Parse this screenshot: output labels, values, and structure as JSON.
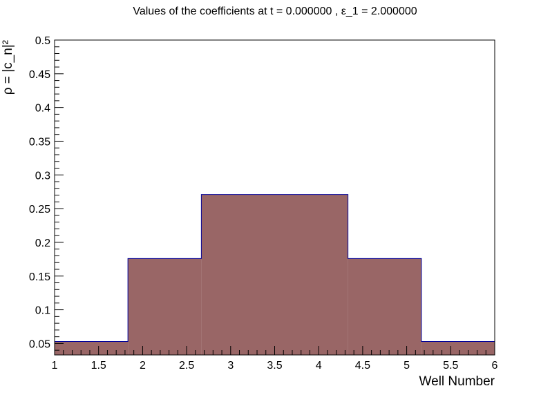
{
  "chart_data": {
    "type": "bar",
    "title": "Values of the coefficients at t = 0.000000 ,     ε_1 = 2.000000",
    "xlabel": "Well Number",
    "ylabel": "ρ = |c_n|²",
    "xlim": [
      1,
      6
    ],
    "ylim": [
      0.033,
      0.5
    ],
    "xticks": [
      "1",
      "1.5",
      "2",
      "2.5",
      "3",
      "3.5",
      "4",
      "4.5",
      "5",
      "5.5",
      "6"
    ],
    "yticks": [
      "0.05",
      "0.1",
      "0.15",
      "0.2",
      "0.25",
      "0.3",
      "0.35",
      "0.4",
      "0.45",
      "0.5"
    ],
    "bins": [
      {
        "x0": 1.0,
        "x1": 1.833,
        "value": 0.053
      },
      {
        "x0": 1.833,
        "x1": 2.667,
        "value": 0.176
      },
      {
        "x0": 2.667,
        "x1": 3.5,
        "value": 0.271
      },
      {
        "x0": 3.5,
        "x1": 4.333,
        "value": 0.271
      },
      {
        "x0": 4.333,
        "x1": 5.167,
        "value": 0.176
      },
      {
        "x0": 5.167,
        "x1": 6.0,
        "value": 0.053
      }
    ],
    "fill_color": "#996666",
    "line_color": "#000099",
    "grid": false,
    "legend": "none"
  }
}
